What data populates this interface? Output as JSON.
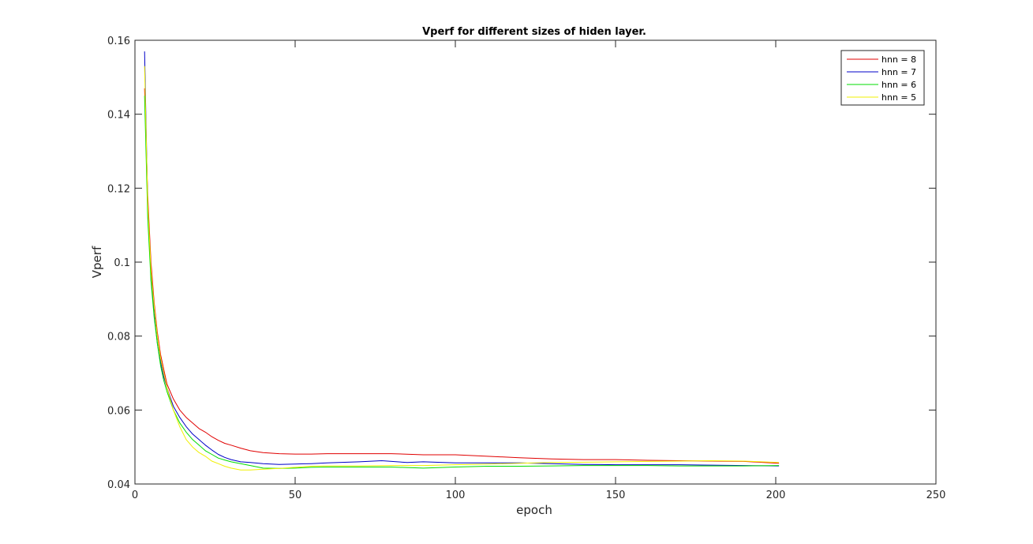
{
  "chart_data": {
    "type": "line",
    "title": "Vperf for different sizes of hiden layer.",
    "xlabel": "epoch",
    "ylabel": "Vperf",
    "xlim": [
      0,
      250
    ],
    "ylim": [
      0.04,
      0.16
    ],
    "xticks": [
      0,
      50,
      100,
      150,
      200,
      250
    ],
    "yticks": [
      0.04,
      0.06,
      0.08,
      0.1,
      0.12,
      0.14,
      0.16
    ],
    "xtick_labels": [
      "0",
      "50",
      "100",
      "150",
      "200",
      "250"
    ],
    "ytick_labels": [
      "0.04",
      "0.06",
      "0.08",
      "0.1",
      "0.12",
      "0.14",
      "0.16"
    ],
    "grid": false,
    "legend_position": "top-right",
    "series": [
      {
        "name": "hnn = 8",
        "color": "#e00000",
        "x": [
          3,
          4,
          5,
          6,
          7,
          8,
          9,
          10,
          12,
          14,
          16,
          18,
          20,
          22,
          24,
          26,
          28,
          30,
          33,
          36,
          40,
          45,
          50,
          55,
          60,
          70,
          80,
          90,
          100,
          110,
          120,
          130,
          140,
          150,
          160,
          170,
          180,
          190,
          201
        ],
        "y": [
          0.147,
          0.118,
          0.1,
          0.089,
          0.081,
          0.075,
          0.071,
          0.067,
          0.063,
          0.06,
          0.058,
          0.0565,
          0.055,
          0.054,
          0.0528,
          0.0518,
          0.051,
          0.0505,
          0.0497,
          0.049,
          0.0485,
          0.0482,
          0.0481,
          0.0481,
          0.0482,
          0.0482,
          0.0482,
          0.0479,
          0.0479,
          0.0475,
          0.0471,
          0.0468,
          0.0466,
          0.0466,
          0.0464,
          0.0463,
          0.0462,
          0.0461,
          0.0456
        ]
      },
      {
        "name": "hnn = 7",
        "color": "#0000c8",
        "x": [
          3,
          4,
          5,
          6,
          7,
          8,
          9,
          10,
          12,
          14,
          16,
          18,
          20,
          22,
          24,
          26,
          28,
          30,
          33,
          36,
          40,
          45,
          50,
          55,
          60,
          70,
          77,
          85,
          90,
          100,
          110,
          120,
          130,
          140,
          150,
          160,
          170,
          180,
          190,
          201
        ],
        "y": [
          0.157,
          0.115,
          0.097,
          0.086,
          0.078,
          0.073,
          0.069,
          0.066,
          0.061,
          0.058,
          0.0555,
          0.0535,
          0.052,
          0.0505,
          0.0492,
          0.048,
          0.0472,
          0.0466,
          0.046,
          0.0458,
          0.0455,
          0.0453,
          0.0454,
          0.0455,
          0.0457,
          0.046,
          0.0463,
          0.0458,
          0.046,
          0.0457,
          0.0457,
          0.0457,
          0.0455,
          0.0453,
          0.0452,
          0.0452,
          0.0452,
          0.0451,
          0.045,
          0.0449
        ]
      },
      {
        "name": "hnn = 6",
        "color": "#00dc00",
        "x": [
          3,
          4,
          5,
          6,
          7,
          8,
          9,
          10,
          12,
          14,
          16,
          18,
          20,
          22,
          24,
          26,
          28,
          30,
          33,
          36,
          40,
          45,
          50,
          55,
          60,
          70,
          80,
          90,
          100,
          110,
          120,
          130,
          140,
          150,
          160,
          170,
          180,
          190,
          201
        ],
        "y": [
          0.145,
          0.112,
          0.095,
          0.085,
          0.078,
          0.072,
          0.068,
          0.065,
          0.06,
          0.0565,
          0.054,
          0.052,
          0.0505,
          0.049,
          0.048,
          0.047,
          0.0465,
          0.046,
          0.0455,
          0.045,
          0.0443,
          0.0442,
          0.0443,
          0.0445,
          0.0446,
          0.0446,
          0.0446,
          0.0443,
          0.0446,
          0.0448,
          0.0448,
          0.0449,
          0.045,
          0.045,
          0.045,
          0.0449,
          0.0449,
          0.0449,
          0.045
        ]
      },
      {
        "name": "hnn = 5",
        "color": "#f0f000",
        "x": [
          3,
          4,
          5,
          6,
          7,
          8,
          9,
          10,
          12,
          14,
          16,
          18,
          20,
          22,
          24,
          26,
          28,
          30,
          33,
          36,
          40,
          45,
          50,
          55,
          60,
          70,
          80,
          90,
          100,
          110,
          120,
          130,
          140,
          150,
          160,
          170,
          180,
          190,
          201
        ],
        "y": [
          0.153,
          0.116,
          0.098,
          0.088,
          0.08,
          0.074,
          0.07,
          0.066,
          0.06,
          0.0555,
          0.052,
          0.05,
          0.0485,
          0.0475,
          0.0462,
          0.0455,
          0.0448,
          0.0443,
          0.0438,
          0.0438,
          0.044,
          0.0442,
          0.0445,
          0.0448,
          0.0449,
          0.0449,
          0.045,
          0.045,
          0.0452,
          0.0454,
          0.0456,
          0.0458,
          0.0459,
          0.046,
          0.0461,
          0.0462,
          0.0463,
          0.0462,
          0.0458
        ]
      }
    ]
  }
}
